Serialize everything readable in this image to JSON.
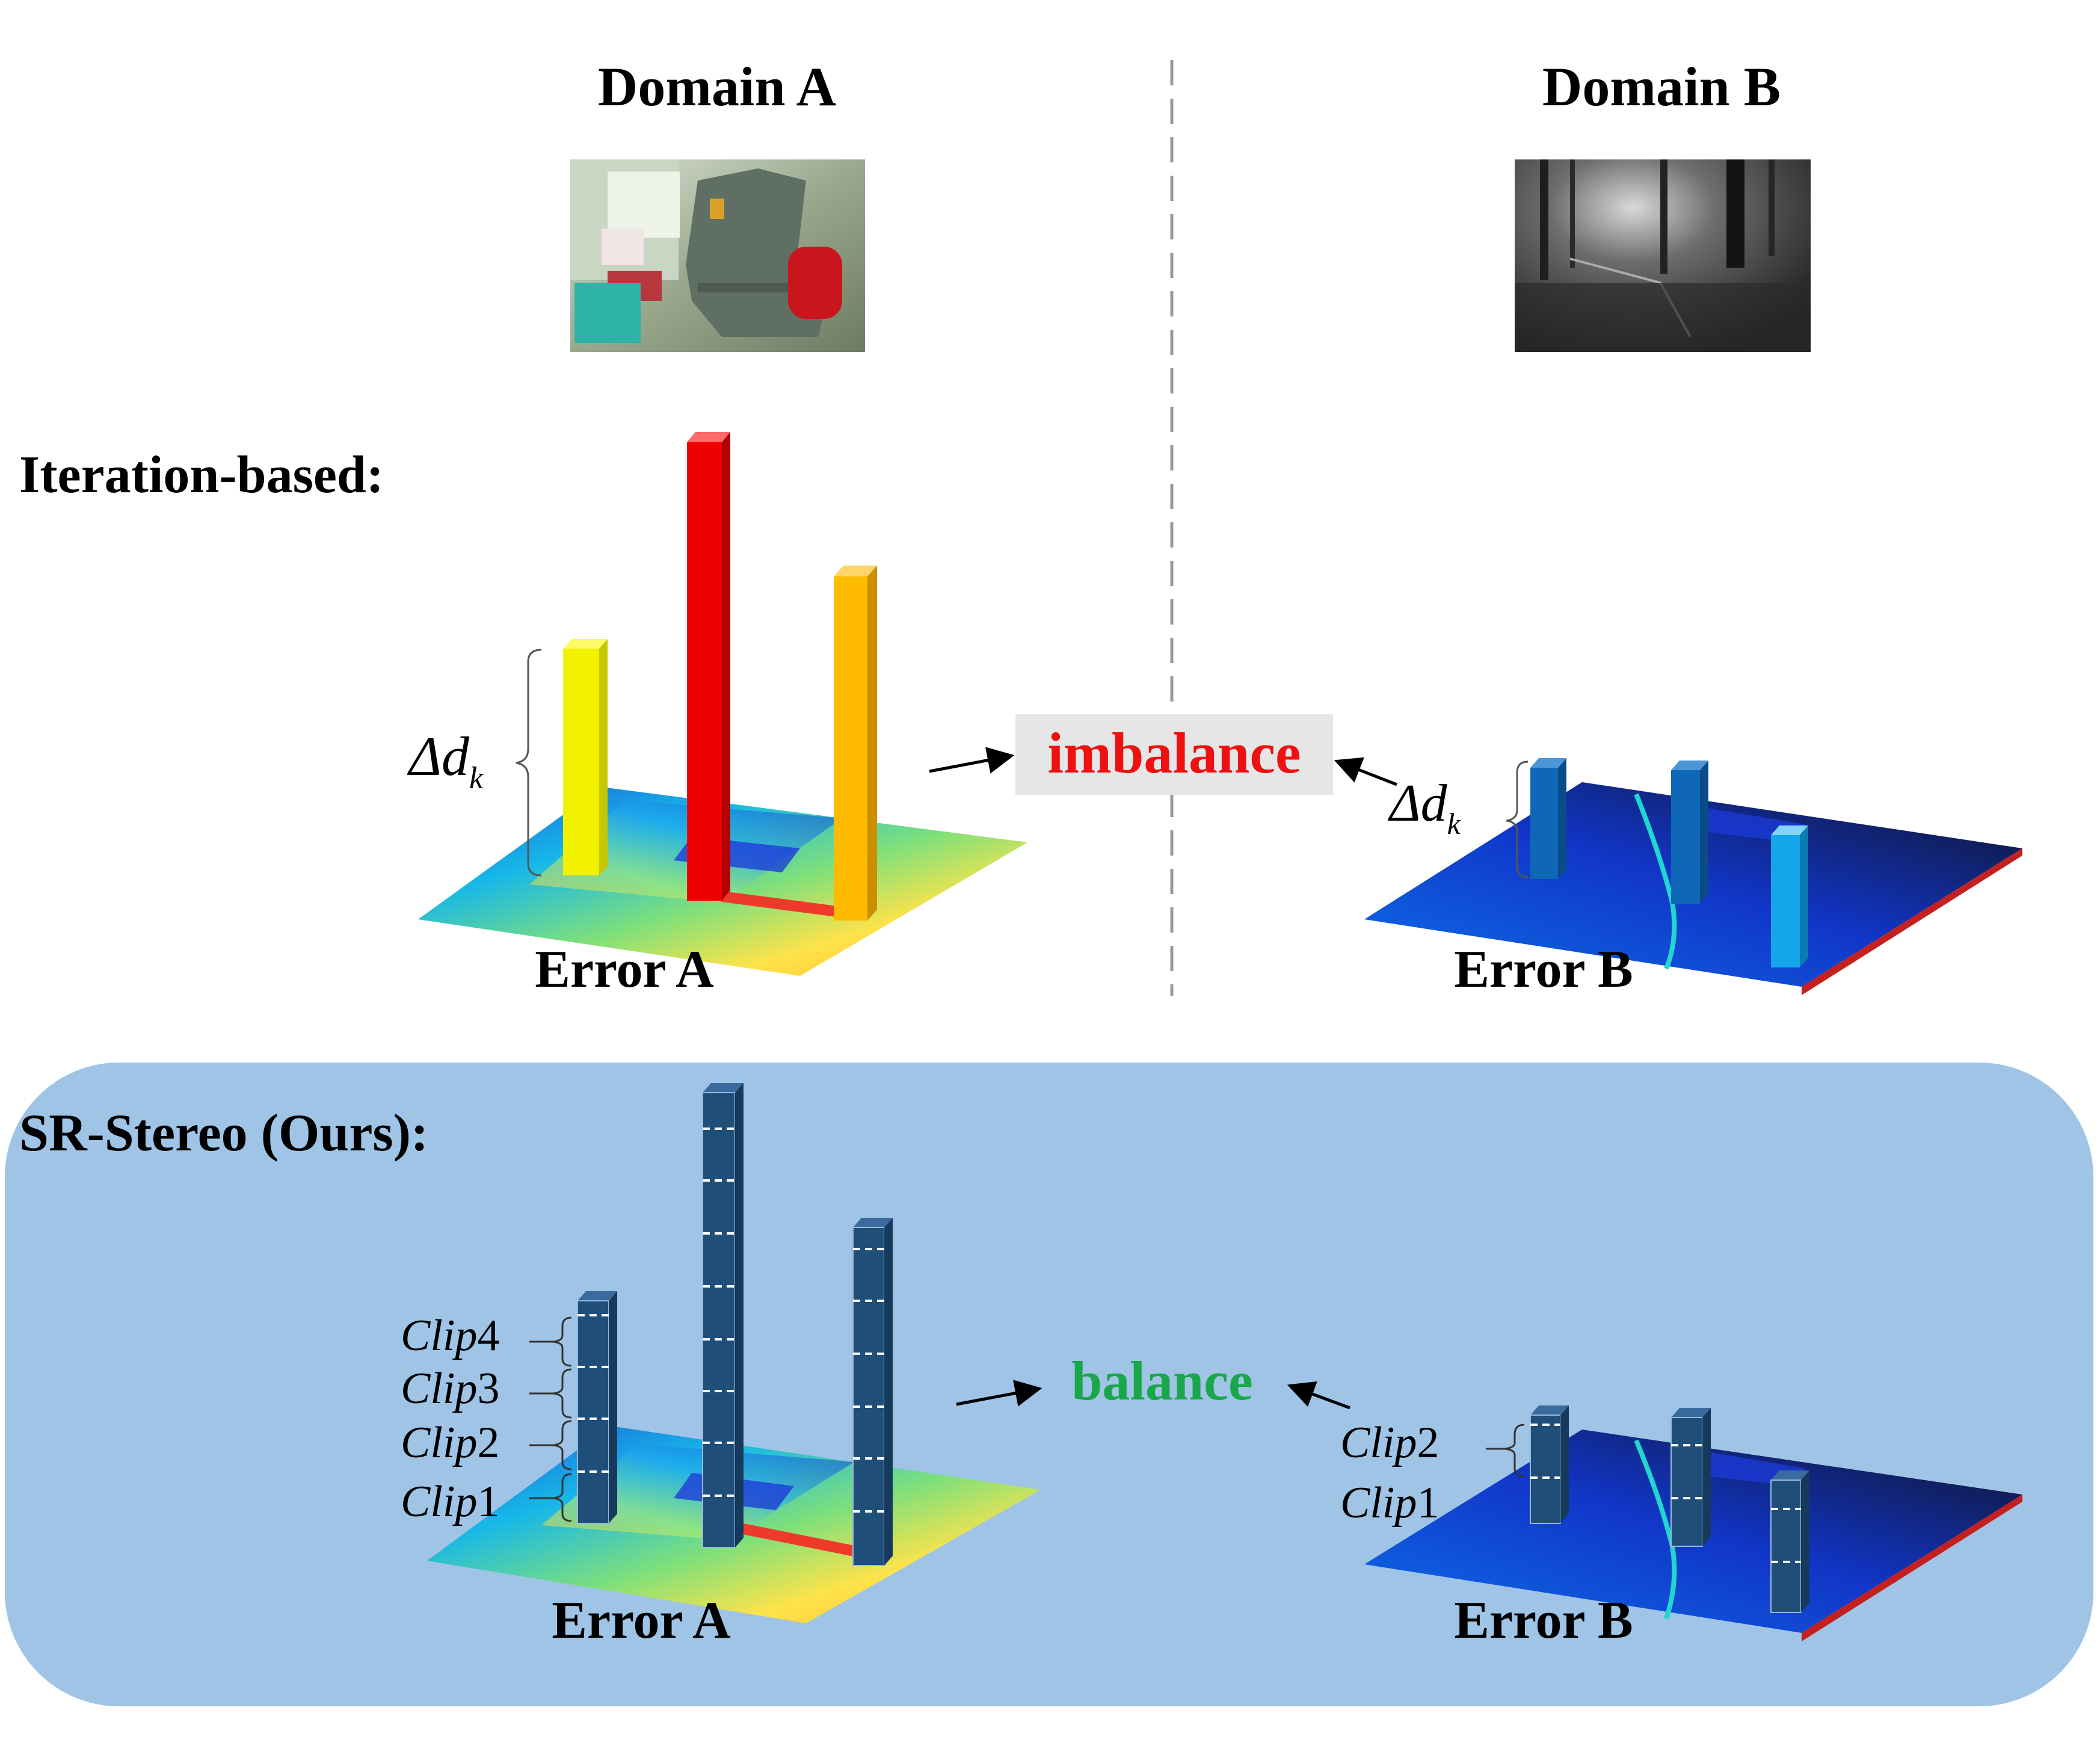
{
  "domains": {
    "a_title": "Domain A",
    "b_title": "Domain B"
  },
  "rows": {
    "iteration_label": "Iteration-based:",
    "ours_label": "SR-Stereo (Ours):"
  },
  "error_labels": {
    "a": "Error A",
    "b": "Error B"
  },
  "status": {
    "imbalance": "imbalance",
    "balance": "balance"
  },
  "annotations": {
    "delta_d": "Δd",
    "delta_sub": "k",
    "clip_word": "Clip",
    "clip_numbers": [
      "4",
      "3",
      "2",
      "1"
    ],
    "clip_b_numbers": [
      "2",
      "1"
    ]
  },
  "colors": {
    "imbalance": "#ee1111",
    "balance": "#1aa64a",
    "panel": "#9fc4e6",
    "bar_ours": "#1f4e79",
    "bar_yellow": "#f2f200",
    "bar_red": "#ee0000",
    "bar_orange": "#ffbb00",
    "bar_blue_dark": "#0f67b8",
    "bar_blue_light": "#14a6ea"
  },
  "icons": {
    "photo_a": "indoor-chair-photo",
    "photo_b": "forest-grayscale-photo",
    "arrow": "arrow-icon",
    "brace": "brace-icon"
  }
}
